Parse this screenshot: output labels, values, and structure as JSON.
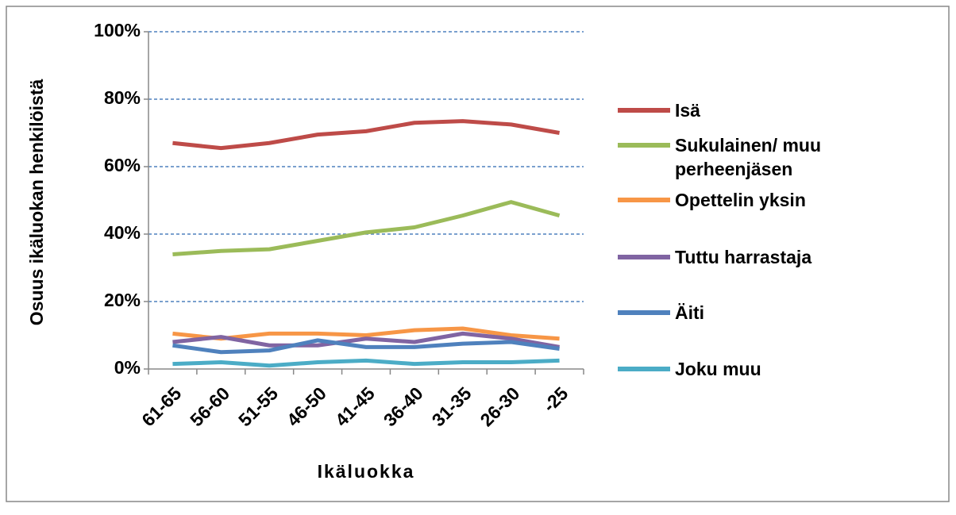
{
  "chart_data": {
    "type": "line",
    "ylabel": "Osuus ikäluokan henkilöistä",
    "xlabel": "Ikäluokka",
    "categories": [
      "61-65",
      "56-60",
      "51-55",
      "46-50",
      "41-45",
      "36-40",
      "31-35",
      "26-30",
      "-25"
    ],
    "ylim": [
      0,
      100
    ],
    "yticks": [
      {
        "value": 0,
        "label": "0%"
      },
      {
        "value": 20,
        "label": "20%"
      },
      {
        "value": 40,
        "label": "40%"
      },
      {
        "value": 60,
        "label": "60%"
      },
      {
        "value": 80,
        "label": "80%"
      },
      {
        "value": 100,
        "label": "100%"
      }
    ],
    "grid": true,
    "legend": "right",
    "series": [
      {
        "name": "Isä",
        "color": "#be4b48",
        "values": [
          67,
          65.5,
          67,
          69.5,
          70.5,
          73,
          73.5,
          72.5,
          70
        ]
      },
      {
        "name": "Sukulainen/ muu perheenjäsen",
        "color": "#9bbb59",
        "values": [
          34,
          35,
          35.5,
          38,
          40.5,
          42,
          45.5,
          49.5,
          45.5
        ]
      },
      {
        "name": "Opettelin yksin",
        "color": "#f79646",
        "values": [
          10.5,
          9,
          10.5,
          10.5,
          10,
          11.5,
          12,
          10,
          9
        ]
      },
      {
        "name": "Tuttu harrastaja",
        "color": "#8064a2",
        "values": [
          8,
          9.5,
          7,
          7,
          9,
          8,
          10.5,
          9,
          6.5
        ]
      },
      {
        "name": "Äiti",
        "color": "#4f81bd",
        "values": [
          7,
          5,
          5.5,
          8.5,
          6.5,
          6.5,
          7.5,
          8,
          6
        ]
      },
      {
        "name": "Joku muu",
        "color": "#4bacc6",
        "values": [
          1.5,
          2,
          1,
          2,
          2.5,
          1.5,
          2,
          2,
          2.5
        ]
      }
    ]
  }
}
